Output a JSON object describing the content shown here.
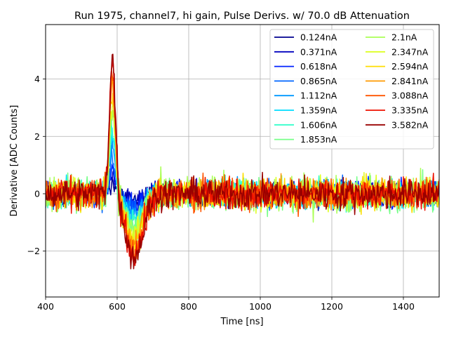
{
  "chart_data": {
    "type": "line",
    "title": "Run 1975, channel7, hi gain, Pulse Derivs. w/ 70.0 dB Attenuation",
    "xlabel": "Time [ns]",
    "ylabel": "Derivative [ADC Counts]",
    "xlim": [
      400,
      1500
    ],
    "ylim": [
      -3.6,
      5.9
    ],
    "grid": true,
    "x_ticks": [
      400,
      600,
      800,
      1000,
      1200,
      1400
    ],
    "y_ticks": [
      -2,
      0,
      2,
      4
    ],
    "x_tick_labels": [
      "400",
      "600",
      "800",
      "1000",
      "1200",
      "1400"
    ],
    "y_tick_labels": [
      "−2",
      "0",
      "2",
      "4"
    ],
    "legend_position": "top-right",
    "legend_columns": 2,
    "sample_step_ns": 2,
    "series": [
      {
        "name": "0.124nA",
        "color": "#00008f",
        "peak": 0.35,
        "undershoot": -0.15,
        "noise": 0.38
      },
      {
        "name": "0.371nA",
        "color": "#0000bf",
        "peak": 0.6,
        "undershoot": -0.3,
        "noise": 0.38
      },
      {
        "name": "0.618nA",
        "color": "#0022ff",
        "peak": 0.95,
        "undershoot": -0.45,
        "noise": 0.4
      },
      {
        "name": "0.865nA",
        "color": "#0066ff",
        "peak": 1.3,
        "undershoot": -0.6,
        "noise": 0.42
      },
      {
        "name": "1.112nA",
        "color": "#0099ff",
        "peak": 1.65,
        "undershoot": -0.75,
        "noise": 0.42
      },
      {
        "name": "1.359nA",
        "color": "#00ddff",
        "peak": 2.0,
        "undershoot": -0.9,
        "noise": 0.44
      },
      {
        "name": "1.606nA",
        "color": "#33ffcc",
        "peak": 2.35,
        "undershoot": -1.05,
        "noise": 0.45
      },
      {
        "name": "1.853nA",
        "color": "#77ff88",
        "peak": 2.7,
        "undershoot": -1.2,
        "noise": 0.55
      },
      {
        "name": "2.1nA",
        "color": "#aaff55",
        "peak": 3.0,
        "undershoot": -1.35,
        "noise": 0.6
      },
      {
        "name": "2.347nA",
        "color": "#ddff22",
        "peak": 3.3,
        "undershoot": -1.5,
        "noise": 0.5
      },
      {
        "name": "2.594nA",
        "color": "#ffdd00",
        "peak": 3.6,
        "undershoot": -1.65,
        "noise": 0.5
      },
      {
        "name": "2.841nA",
        "color": "#ff9900",
        "peak": 3.9,
        "undershoot": -1.8,
        "noise": 0.5
      },
      {
        "name": "3.088nA",
        "color": "#ff5500",
        "peak": 4.2,
        "undershoot": -1.95,
        "noise": 0.5
      },
      {
        "name": "3.335nA",
        "color": "#ee1100",
        "peak": 4.5,
        "undershoot": -2.1,
        "noise": 0.5
      },
      {
        "name": "3.582nA",
        "color": "#990000",
        "peak": 4.8,
        "undershoot": -2.2,
        "noise": 0.5
      }
    ]
  }
}
